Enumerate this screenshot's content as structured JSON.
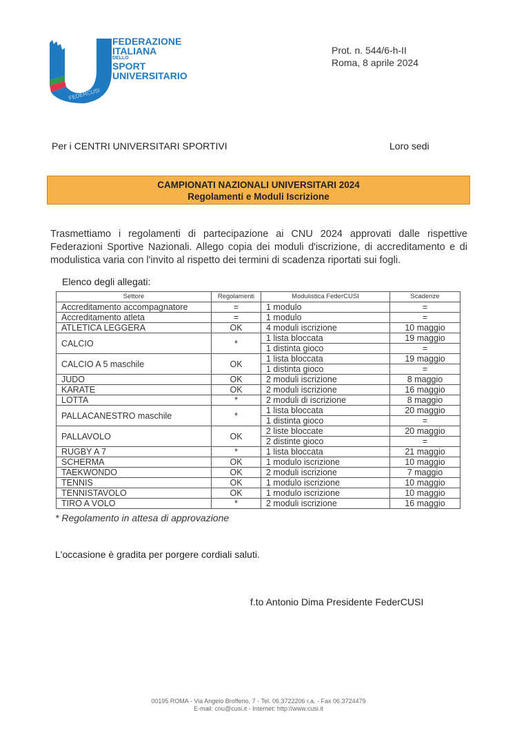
{
  "logo": {
    "line1": "FEDERAZIONE",
    "line2": "ITALIANA",
    "line3": "DELLO",
    "line4": "SPORT",
    "line5": "UNIVERSITARIO",
    "mark": "FEDERCUSI",
    "color": "#1f7ac2"
  },
  "protocol": "Prot. n. 544/6-h-II",
  "date": "Roma, 8 aprile 2024",
  "recipient": "Per i CENTRI UNIVERSITARI SPORTIVI",
  "recipient_right": "Loro sedi",
  "banner": {
    "title": "CAMPIONATI NAZIONALI UNIVERSITARI 2024",
    "subtitle": "Regolamenti e Moduli Iscrizione",
    "color": "#f5b24b"
  },
  "intro": "Trasmettiamo i regolamenti di partecipazione ai CNU 2024 approvati dalle rispettive Federazioni Sportive Nazionali. Allego copia dei moduli d'iscrizione, di accreditamento e di modulistica varia con l'invito al rispetto dei termini di scadenza riportati sui fogli.",
  "list_title": "Elenco degli allegati:",
  "table": {
    "headers": [
      "Settore",
      "Regolamenti",
      "Modulistica FederCUSI",
      "Scadenze"
    ],
    "rows": [
      {
        "settore": "Accreditamento accompagnatore",
        "reg": "=",
        "items": [
          [
            "1 modulo",
            "="
          ]
        ]
      },
      {
        "settore": "Accreditamento atleta",
        "reg": "=",
        "items": [
          [
            "1 modulo",
            "="
          ]
        ]
      },
      {
        "settore": "ATLETICA LEGGERA",
        "reg": "OK",
        "items": [
          [
            "4 moduli iscrizione",
            "10 maggio"
          ]
        ]
      },
      {
        "settore": "CALCIO",
        "reg": "*",
        "items": [
          [
            "1 lista bloccata",
            "19 maggio"
          ],
          [
            "1 distinta gioco",
            "="
          ]
        ]
      },
      {
        "settore": "CALCIO A 5 maschile",
        "reg": "OK",
        "items": [
          [
            "1 lista bloccata",
            "19 maggio"
          ],
          [
            "1 distinta gioco",
            "="
          ]
        ]
      },
      {
        "settore": "JUDO",
        "reg": "OK",
        "items": [
          [
            "2 moduli iscrizione",
            "8 maggio"
          ]
        ]
      },
      {
        "settore": "KARATE",
        "reg": "OK",
        "items": [
          [
            "2 moduli iscrizione",
            "16 maggio"
          ]
        ]
      },
      {
        "settore": "LOTTA",
        "reg": "*",
        "items": [
          [
            "2 moduli di iscrizione",
            "8 maggio"
          ]
        ]
      },
      {
        "settore": "PALLACANESTRO maschile",
        "reg": "*",
        "items": [
          [
            "1 lista bloccata",
            "20 maggio"
          ],
          [
            "1 distinta gioco",
            "="
          ]
        ]
      },
      {
        "settore": "PALLAVOLO",
        "reg": "OK",
        "items": [
          [
            "2 liste bloccate",
            "20 maggio"
          ],
          [
            "2 distinte gioco",
            "="
          ]
        ]
      },
      {
        "settore": "RUGBY A 7",
        "reg": "*",
        "items": [
          [
            "1 lista bloccata",
            "21 maggio"
          ]
        ]
      },
      {
        "settore": "SCHERMA",
        "reg": "OK",
        "items": [
          [
            "1 modulo iscrizione",
            "10 maggio"
          ]
        ]
      },
      {
        "settore": "TAEKWONDO",
        "reg": "OK",
        "items": [
          [
            "2 moduli iscrizione",
            "7 maggio"
          ]
        ]
      },
      {
        "settore": "TENNIS",
        "reg": "OK",
        "items": [
          [
            "1 modulo iscrizione",
            "10 maggio"
          ]
        ]
      },
      {
        "settore": "TENNISTAVOLO",
        "reg": "OK",
        "items": [
          [
            "1 modulo iscrizione",
            "10 maggio"
          ]
        ]
      },
      {
        "settore": "TIRO A VOLO",
        "reg": "*",
        "items": [
          [
            "2 moduli iscrizione",
            "16 maggio"
          ]
        ]
      }
    ]
  },
  "note": "* Regolamento in attesa di approvazione",
  "closing": "L'occasione è gradita per porgere cordiali saluti.",
  "signature": "f.to Antonio Dima Presidente FederCUSI",
  "footer": {
    "line1": "00195 ROMA - Via Angelo Brofferio, 7 - Tel. 06.3722206 r.a. - Fax 06.3724479",
    "line2": "E-mail: cnu@cusi.it - Internet: http://www.cusi.it"
  }
}
